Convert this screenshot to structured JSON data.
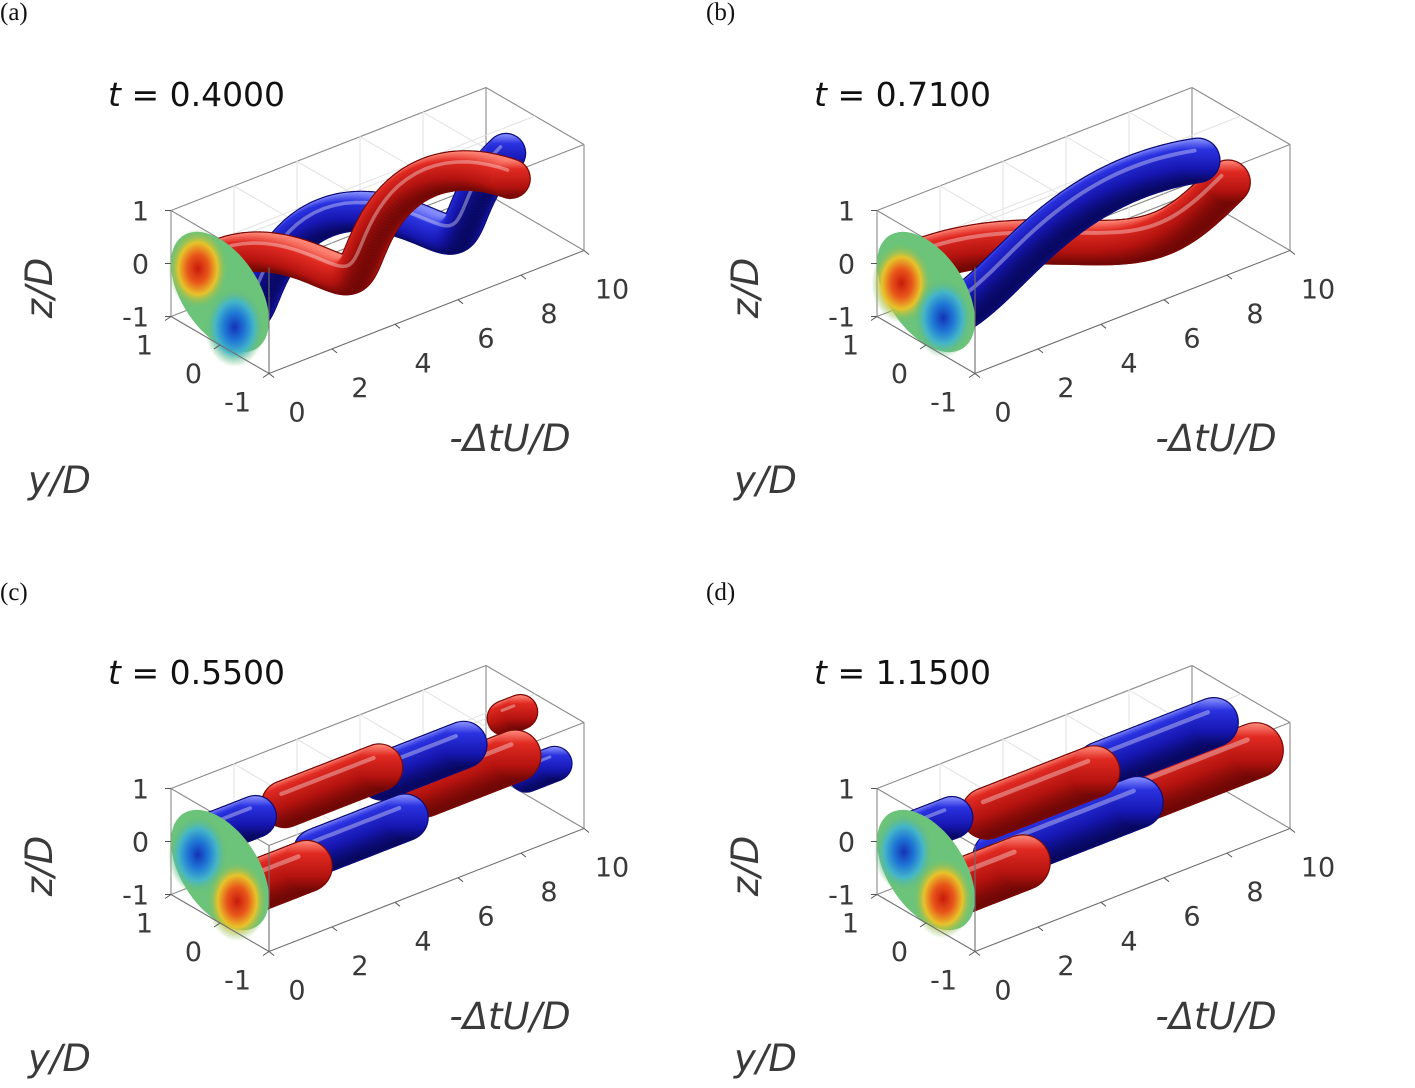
{
  "figure": {
    "panels": [
      {
        "letter": "(a)",
        "t_label": "t = 0.4000"
      },
      {
        "letter": "(b)",
        "t_label": "t = 0.7100"
      },
      {
        "letter": "(c)",
        "t_label": "t = 0.5500"
      },
      {
        "letter": "(d)",
        "t_label": "t = 1.1500"
      }
    ]
  },
  "chart_data": [
    {
      "type": "isosurface-3d",
      "panel": "(a)",
      "annotation": "t = 0.4000",
      "xlabel": "-ΔtU/D",
      "ylabel": "y/D",
      "zlabel": "z/D",
      "xticks": [
        "0",
        "2",
        "4",
        "6",
        "8",
        "10"
      ],
      "yticks": [
        "1",
        "0",
        "-1"
      ],
      "zticks": [
        "1",
        "0",
        "-1"
      ],
      "xlim": [
        0,
        10
      ],
      "ylim": [
        -1,
        1
      ],
      "zlim": [
        -1,
        1
      ],
      "structure": "helical",
      "series": [
        {
          "color": "#cc1c1c",
          "segments": [
            {
              "kind": "helix",
              "x0": 0.3,
              "x1": 8.7,
              "phase": 0.5,
              "wavelength": 6.6,
              "radius": 0.32
            }
          ]
        },
        {
          "color": "#1a1ec4",
          "segments": [
            {
              "kind": "helix",
              "x0": 0.0,
              "x1": 9.7,
              "phase": 3.64,
              "wavelength": 6.6,
              "radius": 0.32
            }
          ]
        }
      ],
      "cross_section": {
        "x": 0,
        "cells": [
          {
            "y": 0.45,
            "z": 0.2,
            "sign": "positive"
          },
          {
            "y": -0.3,
            "z": -0.5,
            "sign": "negative"
          }
        ]
      }
    },
    {
      "type": "isosurface-3d",
      "panel": "(b)",
      "annotation": "t = 0.7100",
      "xlabel": "-ΔtU/D",
      "ylabel": "y/D",
      "zlabel": "z/D",
      "xticks": [
        "0",
        "2",
        "4",
        "6",
        "8",
        "10"
      ],
      "yticks": [
        "1",
        "0",
        "-1"
      ],
      "zticks": [
        "1",
        "0",
        "-1"
      ],
      "xlim": [
        0,
        10
      ],
      "ylim": [
        -1,
        1
      ],
      "zlim": [
        -1,
        1
      ],
      "structure": "helical",
      "series": [
        {
          "color": "#cc1c1c",
          "segments": [
            {
              "kind": "helix",
              "x0": 0.2,
              "x1": 10.0,
              "phase": 0.9,
              "wavelength": 14.0,
              "radius": 0.36
            }
          ]
        },
        {
          "color": "#1a1ec4",
          "segments": [
            {
              "kind": "helix",
              "x0": 0.0,
              "x1": 8.6,
              "phase": 4.04,
              "wavelength": 14.0,
              "radius": 0.36
            }
          ]
        }
      ],
      "cross_section": {
        "x": 0,
        "cells": [
          {
            "y": 0.5,
            "z": -0.1,
            "sign": "positive"
          },
          {
            "y": -0.35,
            "z": -0.3,
            "sign": "negative"
          }
        ]
      }
    },
    {
      "type": "isosurface-3d",
      "panel": "(c)",
      "annotation": "t = 0.5500",
      "xlabel": "-ΔtU/D",
      "ylabel": "y/D",
      "zlabel": "z/D",
      "xticks": [
        "0",
        "2",
        "4",
        "6",
        "8",
        "10"
      ],
      "yticks": [
        "1",
        "0",
        "-1"
      ],
      "zticks": [
        "1",
        "0",
        "-1"
      ],
      "xlim": [
        0,
        10
      ],
      "ylim": [
        -1,
        1
      ],
      "zlim": [
        -1,
        1
      ],
      "structure": "blobs",
      "series": [
        {
          "color": "#cc1c1c",
          "segments": [
            {
              "kind": "blob",
              "x0": 0.0,
              "x1": 2.2,
              "y": -0.35,
              "z": -0.25,
              "radius": 0.42
            },
            {
              "kind": "blob",
              "x0": 2.6,
              "x1": 5.6,
              "y": 0.35,
              "z": 0.45,
              "radius": 0.38
            },
            {
              "kind": "blob",
              "x0": 6.0,
              "x1": 8.9,
              "y": -0.3,
              "z": 0.25,
              "radius": 0.42
            },
            {
              "kind": "blob",
              "x0": 9.5,
              "x1": 10.0,
              "y": 0.3,
              "z": 0.5,
              "radius": 0.28
            }
          ]
        },
        {
          "color": "#1a1ec4",
          "segments": [
            {
              "kind": "blob",
              "x0": 0.0,
              "x1": 1.9,
              "y": 0.5,
              "z": 0.3,
              "radius": 0.34
            },
            {
              "kind": "blob",
              "x0": 2.6,
              "x1": 5.4,
              "y": -0.3,
              "z": -0.1,
              "radius": 0.38
            },
            {
              "kind": "blob",
              "x0": 5.6,
              "x1": 8.2,
              "y": 0.3,
              "z": 0.3,
              "radius": 0.38
            },
            {
              "kind": "blob",
              "x0": 9.1,
              "x1": 10.0,
              "y": -0.4,
              "z": -0.1,
              "radius": 0.28
            }
          ]
        }
      ],
      "cross_section": {
        "x": 0,
        "cells": [
          {
            "y": 0.45,
            "z": 0.05,
            "sign": "negative"
          },
          {
            "y": -0.35,
            "z": -0.4,
            "sign": "positive"
          }
        ]
      }
    },
    {
      "type": "isosurface-3d",
      "panel": "(d)",
      "annotation": "t = 1.1500",
      "xlabel": "-ΔtU/D",
      "ylabel": "y/D",
      "zlabel": "z/D",
      "xticks": [
        "0",
        "2",
        "4",
        "6",
        "8",
        "10"
      ],
      "yticks": [
        "1",
        "0",
        "-1"
      ],
      "zticks": [
        "1",
        "0",
        "-1"
      ],
      "xlim": [
        0,
        10
      ],
      "ylim": [
        -1,
        1
      ],
      "zlim": [
        -1,
        1
      ],
      "structure": "blobs",
      "series": [
        {
          "color": "#cc1c1c",
          "segments": [
            {
              "kind": "blob",
              "x0": 0.0,
              "x1": 2.6,
              "y": -0.3,
              "z": -0.3,
              "radius": 0.45
            },
            {
              "kind": "blob",
              "x0": 2.4,
              "x1": 5.8,
              "y": 0.3,
              "z": 0.35,
              "radius": 0.42
            },
            {
              "kind": "blob",
              "x0": 6.1,
              "x1": 10.0,
              "y": -0.3,
              "z": 0.1,
              "radius": 0.45
            }
          ]
        },
        {
          "color": "#1a1ec4",
          "segments": [
            {
              "kind": "blob",
              "x0": 0.0,
              "x1": 1.6,
              "y": 0.5,
              "z": 0.35,
              "radius": 0.34
            },
            {
              "kind": "blob",
              "x0": 2.0,
              "x1": 6.4,
              "y": -0.2,
              "z": -0.1,
              "radius": 0.42
            },
            {
              "kind": "blob",
              "x0": 6.0,
              "x1": 9.6,
              "y": 0.3,
              "z": 0.4,
              "radius": 0.4
            }
          ]
        }
      ],
      "cross_section": {
        "x": 0,
        "cells": [
          {
            "y": 0.45,
            "z": 0.1,
            "sign": "negative"
          },
          {
            "y": -0.35,
            "z": -0.35,
            "sign": "positive"
          }
        ]
      }
    }
  ]
}
